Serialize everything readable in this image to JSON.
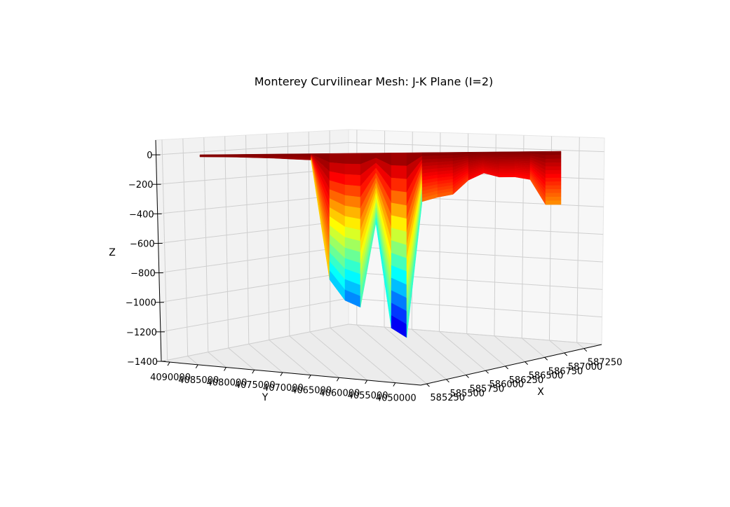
{
  "chart_data": {
    "type": "surface3d",
    "title": "Monterey Curvilinear Mesh: J-K Plane (I=2)",
    "xlabel": "X",
    "ylabel": "Y",
    "zlabel": "Z",
    "z_ticks": [
      "0",
      "−200",
      "−400",
      "−600",
      "−800",
      "−1000",
      "−1200",
      "−1400"
    ],
    "y_ticks": [
      "4090000",
      "4085000",
      "4080000",
      "4075000",
      "4070000",
      "4065000",
      "4060000",
      "4055000",
      "4050000"
    ],
    "x_ticks": [
      "585250",
      "585500",
      "585750",
      "586000",
      "586250",
      "586500",
      "586750",
      "587000",
      "587250"
    ],
    "zlim": [
      -1400,
      100
    ],
    "colormap": "jet",
    "surface_bottom_z": [
      -15,
      -17,
      -20,
      -25,
      -30,
      -38,
      -45,
      -900,
      -1050,
      -1100,
      -500,
      -1250,
      -1320,
      -350,
      -320,
      -300,
      -200,
      -150,
      -180,
      -180,
      -200,
      -380
    ],
    "grid": true
  }
}
